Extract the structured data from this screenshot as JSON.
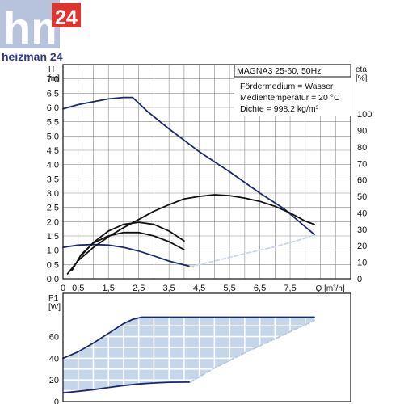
{
  "logo": {
    "brand": "hm",
    "number": "24",
    "caption": "heizman 24",
    "colors": {
      "block": "#b7c3dd",
      "badge": "#e0342e",
      "caption": "#2b3a8f"
    }
  },
  "chart_data": [
    {
      "type": "line",
      "title": "MAGNA3 25-60, 50Hz",
      "notes": [
        "Fördermedium = Wasser",
        "Medientemperatur = 20 °C",
        "Dichte = 998.2 kg/m³"
      ],
      "xlabel": "Q [m³/h]",
      "ylabel_left": "H\n[m]",
      "ylabel_right": "eta\n[%]",
      "xlim": [
        0,
        9.5
      ],
      "ylim": [
        0,
        7.5
      ],
      "y2lim": [
        0,
        130
      ],
      "x_ticks": [
        0,
        0.5,
        1.5,
        2.5,
        3.5,
        4.5,
        5.5,
        6.5,
        7.5,
        8.5
      ],
      "x_tick_labels": [
        "0",
        "0,5",
        "1,5",
        "2,5",
        "3,5",
        "4,5",
        "5,5",
        "6,5",
        "7,5",
        "Q [m³/h]"
      ],
      "y_ticks": [
        0,
        0.5,
        1,
        1.5,
        2,
        2.5,
        3,
        3.5,
        4,
        4.5,
        5,
        5.5,
        6,
        6.5,
        7
      ],
      "y_tick_labels": [
        "0.0",
        "0.5",
        "1.0",
        "1.5",
        "2.0",
        "2.5",
        "3.0",
        "3.5",
        "4.0",
        "4.5",
        "5.0",
        "5.5",
        "6.0",
        "6.5",
        "7.0"
      ],
      "y2_ticks": [
        0,
        10,
        20,
        30,
        40,
        50,
        60,
        70,
        80,
        90,
        100
      ],
      "y2_tick_labels": [
        "0",
        "10",
        "20",
        "30",
        "40",
        "50",
        "60",
        "70",
        "80",
        "90",
        "100"
      ],
      "grid": true,
      "series": [
        {
          "axis": "left",
          "color": "#1b2a6b",
          "x": [
            0,
            0.5,
            1,
            1.5,
            2,
            2.3,
            2.8,
            3.5,
            4.5,
            5.5,
            6.5,
            7.3,
            8.3
          ],
          "y": [
            5.95,
            6.1,
            6.2,
            6.3,
            6.35,
            6.35,
            5.85,
            5.25,
            4.45,
            3.75,
            3.0,
            2.45,
            1.55
          ]
        },
        {
          "axis": "left",
          "color": "#1b2a6b",
          "x": [
            0,
            0.5,
            1,
            1.5,
            2,
            2.5,
            3,
            3.5,
            4.2
          ],
          "y": [
            1.1,
            1.18,
            1.2,
            1.18,
            1.1,
            0.97,
            0.8,
            0.62,
            0.43
          ]
        },
        {
          "axis": "right",
          "color": "#111111",
          "x": [
            0.15,
            0.5,
            1,
            1.5,
            2,
            2.5,
            3,
            3.5,
            4,
            4.5,
            5,
            5.5,
            6,
            6.5,
            7,
            7.5,
            8,
            8.3
          ],
          "y": [
            3,
            11,
            19,
            25.5,
            31,
            36,
            41,
            45,
            48.5,
            50,
            51,
            50.5,
            49,
            47,
            44,
            40,
            35,
            33
          ]
        },
        {
          "axis": "right",
          "color": "#111111",
          "x": [
            0.6,
            1,
            1.5,
            2,
            2.5,
            3,
            3.5,
            4
          ],
          "y": [
            14,
            22,
            29,
            33,
            34.3,
            33,
            29,
            23
          ]
        },
        {
          "axis": "left",
          "color": "#111111",
          "x": [
            0.3,
            0.6,
            1,
            1.5,
            2,
            2.5,
            3,
            3.5,
            4
          ],
          "y": [
            0.3,
            0.85,
            1.25,
            1.5,
            1.62,
            1.62,
            1.5,
            1.3,
            1.02
          ]
        },
        {
          "axis": "left",
          "color": "#c8d6ea",
          "style": "dashed",
          "x": [
            4.2,
            5,
            6,
            7,
            8,
            8.3
          ],
          "y": [
            0.43,
            0.62,
            0.88,
            1.12,
            1.42,
            1.53
          ]
        }
      ]
    },
    {
      "type": "area",
      "ylabel": "P1\n[W]",
      "xlim": [
        0,
        9.5
      ],
      "ylim": [
        0,
        100
      ],
      "y_ticks": [
        0,
        20,
        40,
        60
      ],
      "y_tick_labels": [
        "0",
        "20",
        "40",
        "60"
      ],
      "grid": true,
      "fill_color": "#c5d5ea",
      "series": [
        {
          "color": "#1b2a6b",
          "x": [
            0,
            0.5,
            1,
            1.5,
            2,
            2.3,
            2.6,
            3,
            4,
            5,
            6,
            7,
            8.3
          ],
          "y": [
            40,
            46,
            54,
            63,
            72,
            76,
            78,
            78,
            78,
            78,
            78,
            78,
            78
          ]
        },
        {
          "color": "#1b2a6b",
          "x": [
            0,
            0.5,
            1,
            1.5,
            2,
            2.5,
            3,
            3.5,
            4.2
          ],
          "y": [
            8,
            9.5,
            11,
            13,
            14.8,
            16.3,
            17.2,
            17.8,
            18
          ]
        },
        {
          "color": "#b9c9e0",
          "style": "dashed",
          "x": [
            4.2,
            5,
            6,
            7,
            8,
            8.3
          ],
          "y": [
            18,
            31,
            45,
            58,
            71,
            75
          ]
        }
      ]
    }
  ]
}
